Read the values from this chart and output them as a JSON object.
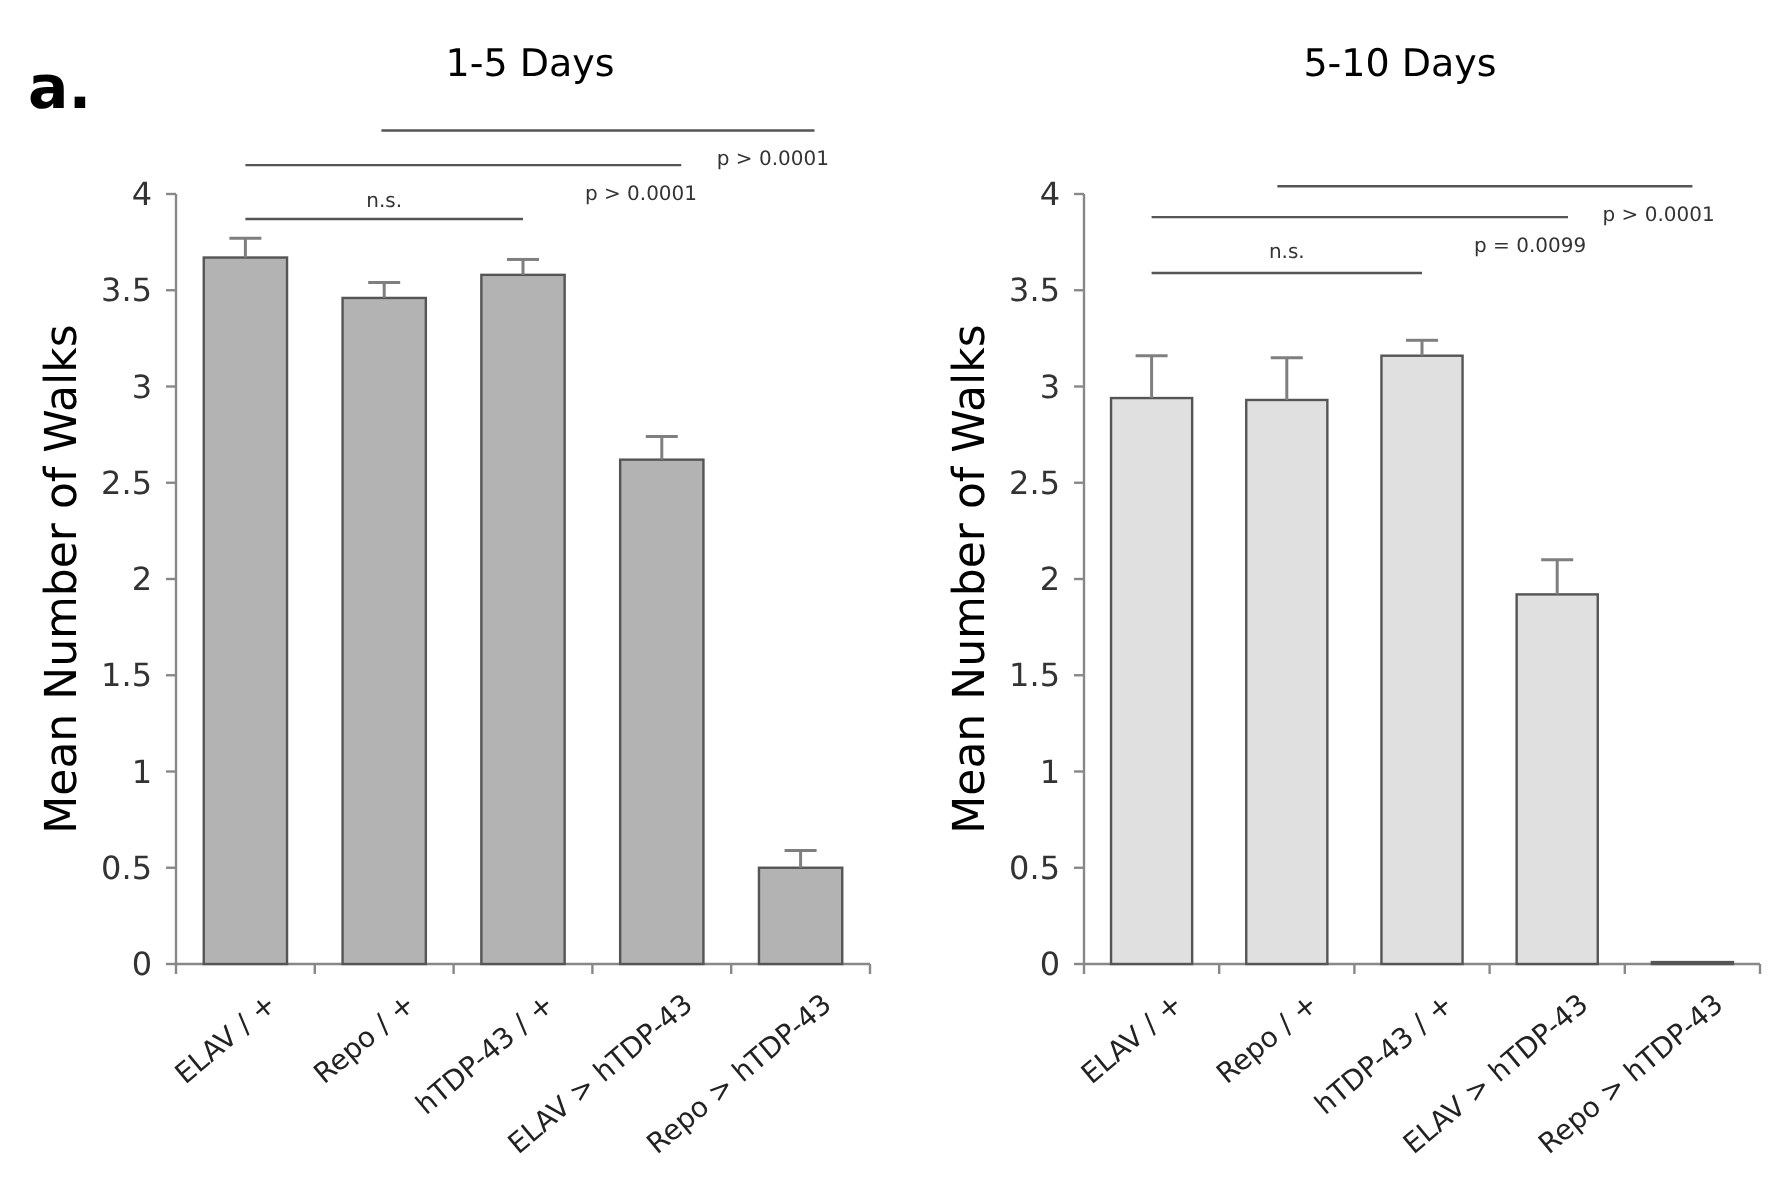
{
  "chart_data": [
    {
      "type": "bar",
      "title": "1-5 Days",
      "ylabel": "Mean Number of Walks",
      "categories": [
        "ELAV / +",
        "Repo / +",
        "hTDP-43 / +",
        "ELAV > hTDP-43",
        "Repo > hTDP-43"
      ],
      "values": [
        3.67,
        3.46,
        3.58,
        2.62,
        0.5
      ],
      "color": "#b3b3b3",
      "errors": [
        [
          3.67,
          3.77
        ],
        [
          3.46,
          3.54
        ],
        [
          3.58,
          3.66
        ],
        [
          2.62,
          2.74
        ],
        [
          0.5,
          0.59
        ]
      ],
      "ylim": [
        0,
        4
      ],
      "yticks": [
        0,
        0.5,
        1,
        1.5,
        2,
        2.5,
        3,
        3.5,
        4
      ],
      "grid": false,
      "annotations": [
        "a.",
        "n.s.",
        "p > 0.0001",
        "p > 0.0001"
      ]
    },
    {
      "type": "bar",
      "title": "5-10 Days",
      "ylabel": "Mean Number of Walks",
      "categories": [
        "ELAV / +",
        "Repo / +",
        "hTDP-43 / +",
        "ELAV > hTDP-43",
        "Repo > hTDP-43"
      ],
      "values": [
        2.94,
        2.93,
        3.16,
        1.92,
        0.01
      ],
      "color": "#e0e0e0",
      "errors": [
        [
          2.94,
          3.16
        ],
        [
          2.93,
          3.15
        ],
        [
          3.16,
          3.24
        ],
        [
          1.92,
          2.1
        ],
        null
      ],
      "ylim": [
        0,
        4
      ],
      "yticks": [
        0,
        0.5,
        1,
        1.5,
        2,
        2.5,
        3,
        3.5,
        4
      ],
      "grid": false,
      "annotations": [
        "n.s.",
        "p = 0.0099",
        "p > 0.0001"
      ]
    }
  ]
}
